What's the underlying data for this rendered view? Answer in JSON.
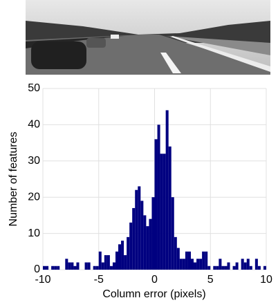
{
  "chart_data": {
    "type": "histogram",
    "xlabel": "Column error (pixels)",
    "ylabel": "Number of features",
    "bins": [
      -10,
      -9.75,
      -9.5,
      -9.25,
      -9,
      -8.75,
      -8.5,
      -8.25,
      -8,
      -7.75,
      -7.5,
      -7.25,
      -7,
      -6.75,
      -6.5,
      -6.25,
      -6,
      -5.75,
      -5.5,
      -5.25,
      -5,
      -4.75,
      -4.5,
      -4.25,
      -4,
      -3.75,
      -3.5,
      -3.25,
      -3,
      -2.75,
      -2.5,
      -2.25,
      -2,
      -1.75,
      -1.5,
      -1.25,
      -1,
      -0.75,
      -0.5,
      -0.25,
      0,
      0.25,
      0.5,
      0.75,
      1,
      1.25,
      1.5,
      1.75,
      2,
      2.25,
      2.5,
      2.75,
      3,
      3.25,
      3.5,
      3.75,
      4,
      4.25,
      4.5,
      4.75,
      5,
      5.25,
      5.5,
      5.75,
      6,
      6.25,
      6.5,
      6.75,
      7,
      7.25,
      7.5,
      7.75,
      8,
      8.25,
      8.5,
      8.75,
      9,
      9.25,
      9.5,
      9.75,
      10
    ],
    "values": [
      1,
      1,
      0,
      1,
      1,
      1,
      0,
      0,
      3,
      2,
      2,
      1,
      2,
      0,
      0,
      2,
      2,
      0,
      1,
      1,
      5,
      2,
      4,
      4,
      1,
      2,
      5,
      7,
      8,
      4,
      9,
      13,
      17,
      22,
      23,
      19,
      15,
      12,
      14,
      20,
      36,
      40,
      32,
      32,
      44,
      34,
      20,
      9,
      6,
      3,
      3,
      5,
      5,
      3,
      2,
      3,
      3,
      5,
      5,
      1,
      0,
      1,
      1,
      3,
      1,
      1,
      2,
      0,
      1,
      2,
      0,
      3,
      2,
      3,
      1,
      0,
      3,
      1,
      0,
      1
    ],
    "color": "#000080",
    "xlim": [
      -10,
      10
    ],
    "xticks": [
      -10,
      -5,
      0,
      5,
      10
    ],
    "ylim": [
      0,
      50
    ],
    "yticks": [
      0,
      10,
      20,
      30,
      40,
      50
    ],
    "grid": true
  }
}
